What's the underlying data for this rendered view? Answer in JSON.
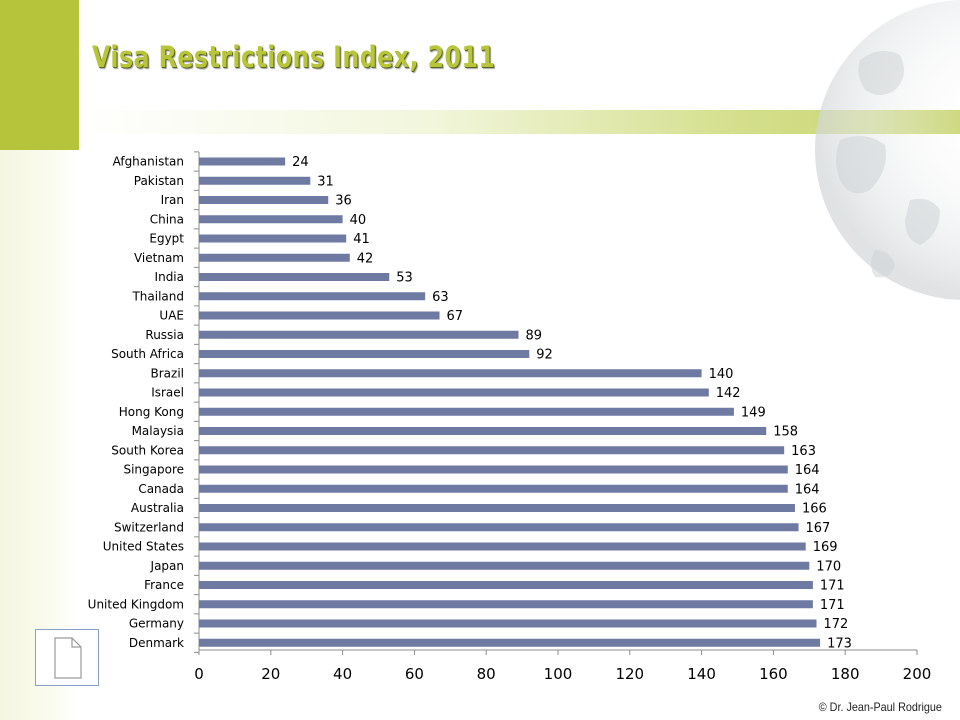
{
  "title": "Visa Restrictions Index, 2011",
  "credit": "© Dr. Jean-Paul Rodrigue",
  "colors": {
    "bar": "#6f7aa3",
    "accent_green": "#b5c43a",
    "title_green": "#b8c53a"
  },
  "icons": {
    "document": "document-icon",
    "globe": "globe-icon"
  },
  "chart_data": {
    "type": "bar",
    "orientation": "horizontal",
    "title": "Visa Restrictions Index, 2011",
    "categories": [
      "Afghanistan",
      "Pakistan",
      "Iran",
      "China",
      "Egypt",
      "Vietnam",
      "India",
      "Thailand",
      "UAE",
      "Russia",
      "South Africa",
      "Brazil",
      "Israel",
      "Hong Kong",
      "Malaysia",
      "South Korea",
      "Singapore",
      "Canada",
      "Australia",
      "Switzerland",
      "United States",
      "Japan",
      "France",
      "United Kingdom",
      "Germany",
      "Denmark"
    ],
    "values": [
      24,
      31,
      36,
      40,
      41,
      42,
      53,
      63,
      67,
      89,
      92,
      140,
      142,
      149,
      158,
      163,
      164,
      164,
      166,
      167,
      169,
      170,
      171,
      171,
      172,
      173
    ],
    "xlim": [
      0,
      200
    ],
    "x_ticks": [
      0,
      20,
      40,
      60,
      80,
      100,
      120,
      140,
      160,
      180,
      200
    ],
    "xlabel": "",
    "ylabel": "",
    "data_labels": true,
    "grid": false,
    "legend": "none"
  }
}
